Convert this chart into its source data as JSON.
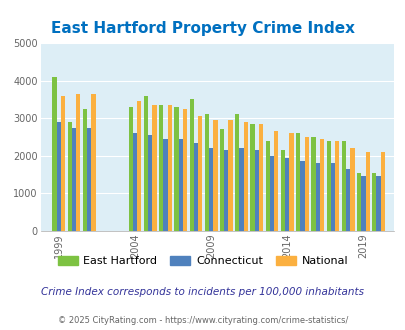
{
  "title": "East Hartford Property Crime Index",
  "subtitle": "Crime Index corresponds to incidents per 100,000 inhabitants",
  "footer": "© 2025 CityRating.com - https://www.cityrating.com/crime-statistics/",
  "years": [
    1999,
    2000,
    2001,
    2004,
    2005,
    2006,
    2007,
    2008,
    2009,
    2010,
    2011,
    2012,
    2013,
    2014,
    2015,
    2016,
    2017,
    2018,
    2019,
    2020
  ],
  "east_hartford": [
    4100,
    2900,
    3250,
    3300,
    3600,
    3350,
    3300,
    3500,
    3100,
    2700,
    3100,
    2850,
    2400,
    2150,
    2600,
    2500,
    2400,
    2400,
    1550,
    1550
  ],
  "connecticut": [
    2900,
    2750,
    2750,
    2600,
    2550,
    2450,
    2450,
    2350,
    2200,
    2150,
    2200,
    2150,
    2000,
    1950,
    1850,
    1800,
    1800,
    1650,
    1450,
    1450
  ],
  "national": [
    3600,
    3650,
    3650,
    3450,
    3350,
    3350,
    3250,
    3050,
    2950,
    2950,
    2900,
    2850,
    2650,
    2600,
    2500,
    2450,
    2400,
    2200,
    2100,
    2100
  ],
  "color_eh": "#7dc242",
  "color_ct": "#4f81bd",
  "color_nat": "#fbb040",
  "bg_color": "#ddeef6",
  "title_color": "#0070c0",
  "subtitle_color": "#333399",
  "footer_color": "#666666",
  "ylim": [
    0,
    5000
  ],
  "yticks": [
    0,
    1000,
    2000,
    3000,
    4000,
    5000
  ],
  "xtick_year_labels": [
    "1999",
    "2004",
    "2009",
    "2014",
    "2019"
  ],
  "xtick_year_values": [
    1999,
    2004,
    2009,
    2014,
    2019
  ]
}
